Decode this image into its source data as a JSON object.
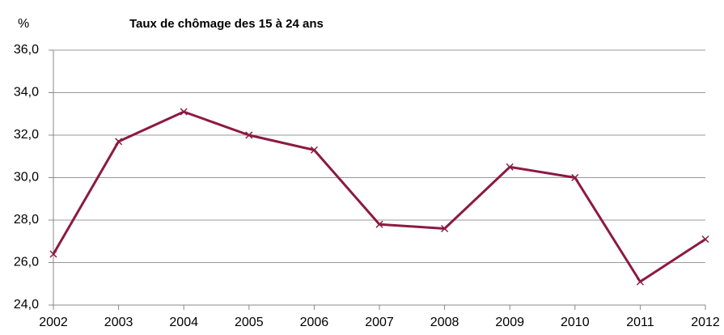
{
  "chart_data": {
    "type": "line",
    "title": "Taux de chômage des 15 à 24 ans",
    "y_label": "%",
    "x": [
      2002,
      2003,
      2004,
      2005,
      2006,
      2007,
      2008,
      2009,
      2010,
      2011,
      2012
    ],
    "xlim": [
      2002,
      2012
    ],
    "xticks": [
      2002,
      2003,
      2004,
      2005,
      2006,
      2007,
      2008,
      2009,
      2010,
      2011,
      2012
    ],
    "series": [
      {
        "color": "#8b1a42",
        "values": [
          26.4,
          31.7,
          33.1,
          32.0,
          31.3,
          27.8,
          27.6,
          30.5,
          30.0,
          25.1,
          27.1
        ]
      }
    ],
    "ylim": [
      24,
      36
    ],
    "yticks": [
      {
        "value": 24,
        "label": "24,0"
      },
      {
        "value": 26,
        "label": "26,0"
      },
      {
        "value": 28,
        "label": "28,0"
      },
      {
        "value": 30,
        "label": "30,0"
      },
      {
        "value": 32,
        "label": "32,0"
      },
      {
        "value": 34,
        "label": "34,0"
      },
      {
        "value": 36,
        "label": "36,0"
      }
    ],
    "grid": true
  }
}
